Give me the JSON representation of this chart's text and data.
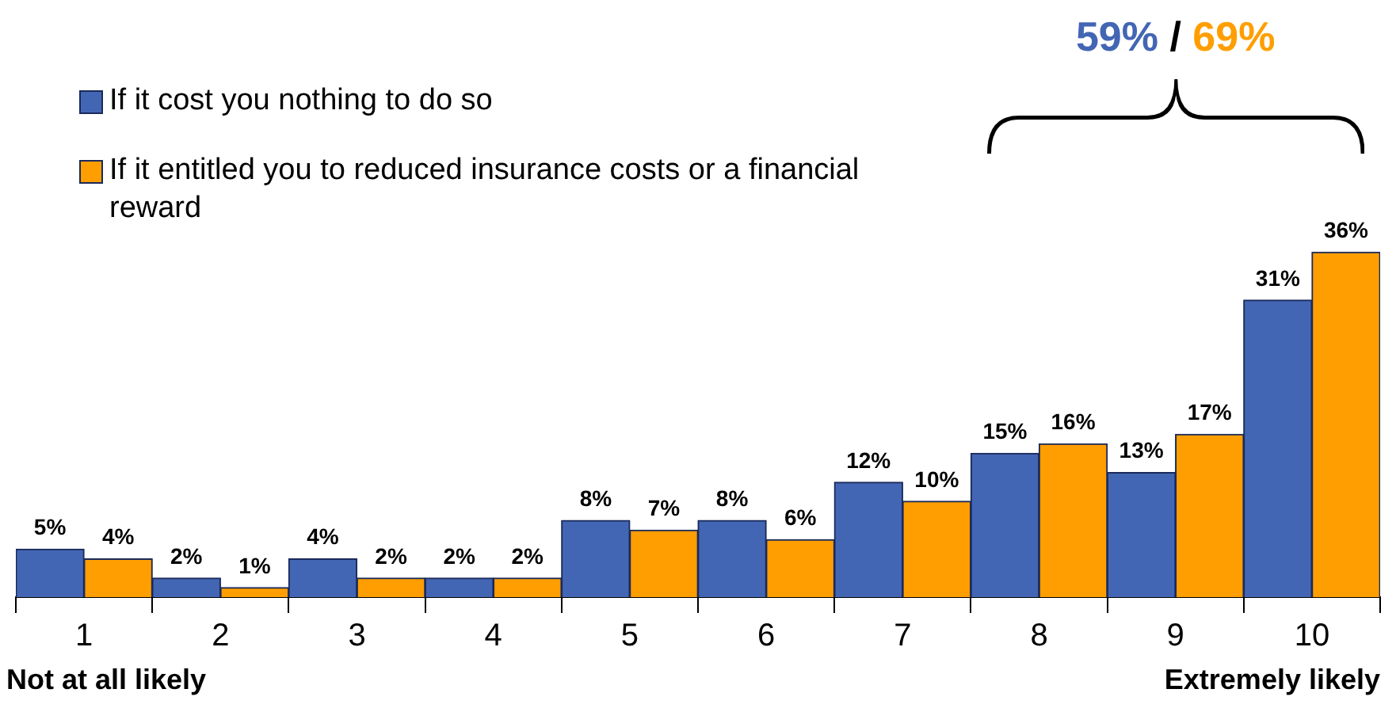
{
  "chart_data": {
    "type": "bar",
    "categories": [
      "1",
      "2",
      "3",
      "4",
      "5",
      "6",
      "7",
      "8",
      "9",
      "10"
    ],
    "series": [
      {
        "name": "If it cost you nothing to do so",
        "color": "#4366b4",
        "values": [
          5,
          2,
          4,
          2,
          8,
          8,
          12,
          15,
          13,
          31
        ],
        "value_labels": [
          "5%",
          "2%",
          "4%",
          "2%",
          "8%",
          "8%",
          "12%",
          "15%",
          "13%",
          "31%"
        ]
      },
      {
        "name": "If it entitled you to reduced insurance costs or a financial reward",
        "color": "#ff9e00",
        "values": [
          4,
          1,
          2,
          2,
          7,
          6,
          10,
          16,
          17,
          36
        ],
        "value_labels": [
          "4%",
          "1%",
          "2%",
          "2%",
          "7%",
          "6%",
          "10%",
          "16%",
          "17%",
          "36%"
        ]
      }
    ],
    "annotations": [
      "59% / 69%",
      "Not at all likely",
      "Extremely likely"
    ],
    "legend": "top left",
    "grid": false
  }
}
